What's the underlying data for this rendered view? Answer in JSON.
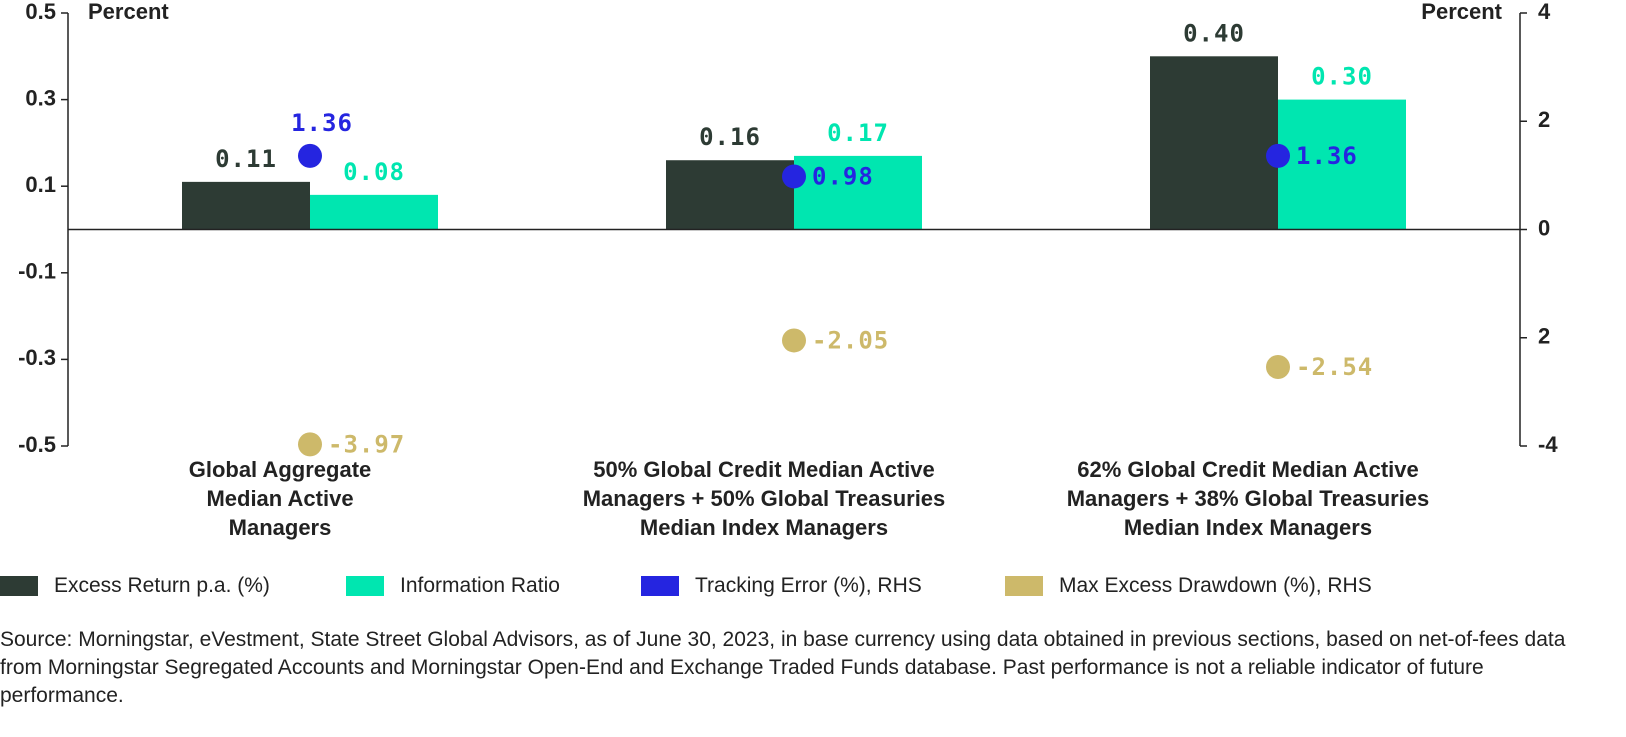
{
  "chart_data": {
    "type": "bar",
    "y_label": "Percent",
    "y2_label": "Percent",
    "categories": [
      "Global Aggregate Median Active Managers",
      "50% Global Credit Median Active Managers + 50% Global Treasuries Median Index Managers",
      "62% Global Credit Median Active Managers + 38% Global Treasuries Median Index Managers"
    ],
    "ylim": [
      -0.5,
      0.5
    ],
    "yticks": [
      0.5,
      0.3,
      0.1,
      -0.1,
      -0.3,
      -0.5
    ],
    "y2lim": [
      -4,
      4
    ],
    "y2ticks": [
      4,
      2,
      0,
      {
        "value": -2,
        "label": "2"
      },
      -4
    ],
    "series": [
      {
        "name": "Excess Return p.a. (%)",
        "type": "bar",
        "color": "#2d3b34",
        "values": [
          0.11,
          0.16,
          0.4
        ],
        "value_labels": [
          "0.11",
          "0.16",
          "0.40"
        ]
      },
      {
        "name": "Information Ratio",
        "type": "bar",
        "color": "#00e6b0",
        "values": [
          0.08,
          0.17,
          0.3
        ],
        "value_labels": [
          "0.08",
          "0.17",
          "0.30"
        ]
      },
      {
        "name": "Tracking Error (%), RHS",
        "type": "scatter",
        "axis": "y2",
        "color": "#2525e0",
        "values": [
          1.36,
          0.98,
          1.36
        ]
      },
      {
        "name": "Max Excess Drawdown (%), RHS",
        "type": "scatter",
        "axis": "y2",
        "color": "#cdb96a",
        "values": [
          -3.97,
          -2.05,
          -2.54
        ]
      }
    ],
    "source": "Source: Morningstar, eVestment, State Street Global Advisors, as of June 30, 2023, in base currency using data obtained in previous sections, based on net-of-fees data from Morningstar Segregated Accounts and Morningstar Open-End and Exchange Traded Funds database. Past performance is not a reliable indicator of future performance."
  }
}
